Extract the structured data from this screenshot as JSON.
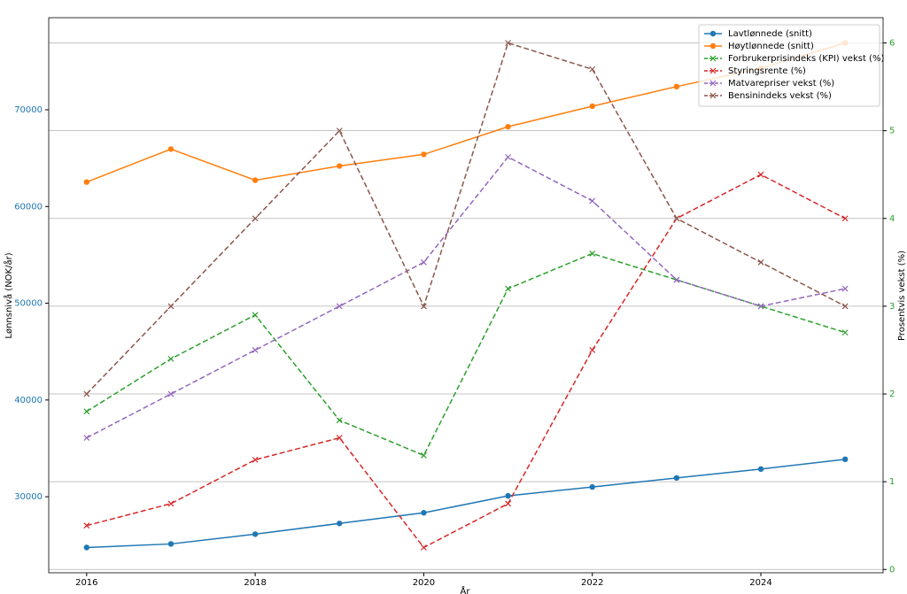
{
  "chart_data": {
    "type": "line",
    "x": [
      2016,
      2017,
      2018,
      2019,
      2020,
      2021,
      2022,
      2023,
      2024,
      2025
    ],
    "xlim": [
      2015.55,
      2025.45
    ],
    "xticks": [
      2016,
      2018,
      2020,
      2022,
      2024
    ],
    "ylim": [
      22140,
      79520
    ],
    "yticks": [
      30000,
      40000,
      50000,
      60000,
      70000
    ],
    "ytick_color": "#1f77b4",
    "y2lim": [
      -0.0375,
      6.2875
    ],
    "y2ticks": [
      0,
      1,
      2,
      3,
      4,
      5,
      6
    ],
    "y2tick_color": "#2ca02c",
    "xlabel": "År",
    "ylabel": "Lønnsnivå (NOK/år)",
    "y2label": "Prosentvis vekst (%)",
    "grid": true,
    "legend": "upper right",
    "series": [
      {
        "name": "Lavtlønnede (snitt)",
        "color": "#1f77b4",
        "linestyle": "solid",
        "marker": "o",
        "values": [
          24750,
          25120,
          26130,
          27240,
          28340,
          30090,
          31010,
          31940,
          32860,
          33870
        ]
      },
      {
        "name": "Høytlønnede (snitt)",
        "color": "#ff7f0e",
        "linestyle": "solid",
        "marker": "o",
        "values": [
          62530,
          65940,
          62720,
          64190,
          65390,
          68250,
          70370,
          72400,
          74300,
          76910
        ]
      },
      {
        "name": "Forbrukerprisindeks (KPI) vekst (%)",
        "color": "#2ca02c",
        "linestyle": "dashed",
        "marker": "x",
        "axis": "y2",
        "values": [
          1.8,
          2.4,
          2.9,
          1.7,
          1.3,
          3.2,
          3.6,
          3.3,
          3.0,
          2.7
        ]
      },
      {
        "name": "Styringsrente (%)",
        "color": "#d62728",
        "linestyle": "dashed",
        "marker": "x",
        "axis": "y2",
        "values": [
          0.5,
          0.75,
          1.25,
          1.5,
          0.25,
          0.75,
          2.5,
          4.0,
          4.5,
          4.0
        ]
      },
      {
        "name": "Matvarepriser vekst (%)",
        "color": "#9467bd",
        "linestyle": "dashed",
        "marker": "x",
        "axis": "y2",
        "values": [
          1.5,
          2.0,
          2.5,
          3.0,
          3.5,
          4.7,
          4.2,
          3.3,
          3.0,
          3.2
        ]
      },
      {
        "name": "Bensinindeks vekst (%)",
        "color": "#8c564b",
        "linestyle": "dashed",
        "marker": "x",
        "axis": "y2",
        "values": [
          2.0,
          3.0,
          4.0,
          5.0,
          3.0,
          6.0,
          5.7,
          4.0,
          3.5,
          3.0
        ]
      }
    ]
  }
}
